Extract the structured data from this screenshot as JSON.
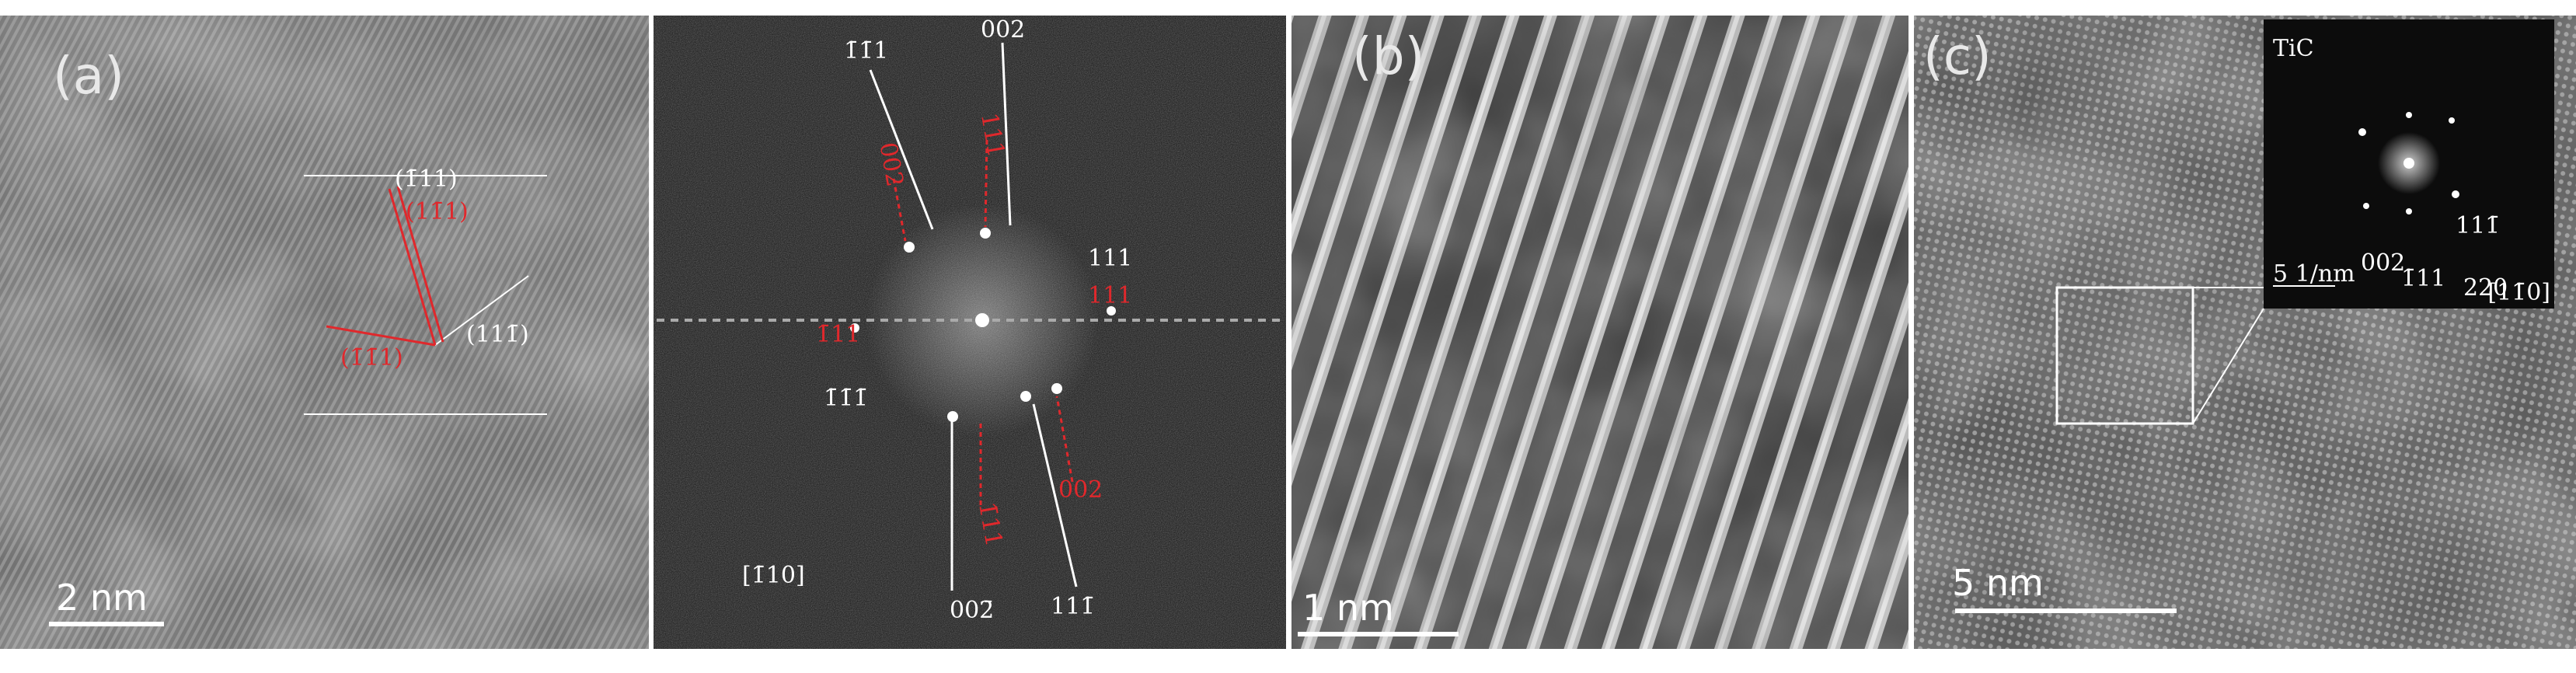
{
  "panels": [
    {
      "label": "(a)",
      "scale_bar": "2 nm",
      "annotations": [
        "(1̄11)",
        "(11̄1)",
        "(1̄1̄1)",
        "(111̄)"
      ]
    },
    {
      "annotations": [
        "1̄1̄1",
        "002",
        "002",
        "111",
        "111",
        "111",
        "1̄11",
        "1̄1̄1̄",
        "002̄",
        "111̄",
        "1̄11",
        "002"
      ],
      "zone_axis": "[1̄10]"
    },
    {
      "label": "(b)",
      "scale_bar": "1 nm"
    },
    {
      "label": "(c)",
      "scale_bar": "5 nm",
      "inset": {
        "title": "TiC",
        "scale_bar": "5 1/nm",
        "zone_axis": "[11̄0]",
        "spots": [
          "111̄",
          "002",
          "1̄11",
          "220"
        ]
      }
    }
  ]
}
